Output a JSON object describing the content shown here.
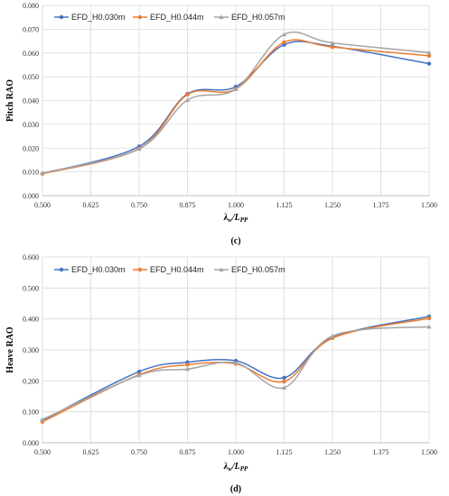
{
  "chart_data": [
    {
      "type": "line",
      "caption": "(c)",
      "ylabel": "Pitch RAO",
      "xlabel_main": "λ",
      "xlabel_sub1": "w",
      "xlabel_mid": "/L",
      "xlabel_sub2": "PP",
      "x": [
        0.5,
        0.75,
        0.875,
        1.0,
        1.125,
        1.25,
        1.5
      ],
      "xticks": [
        "0.500",
        "0.625",
        "0.750",
        "0.875",
        "1.000",
        "1.125",
        "1.250",
        "1.375",
        "1.500"
      ],
      "yticks": [
        "0.000",
        "0.010",
        "0.020",
        "0.030",
        "0.040",
        "0.050",
        "0.060",
        "0.070",
        "0.080"
      ],
      "xlim": [
        0.5,
        1.5
      ],
      "ylim": [
        0,
        0.08
      ],
      "series": [
        {
          "name": "EFD_H0.030m",
          "color": "#4472C4",
          "marker": "circle",
          "values": [
            0.0093,
            0.0207,
            0.0428,
            0.0458,
            0.0635,
            0.0628,
            0.0555
          ]
        },
        {
          "name": "EFD_H0.044m",
          "color": "#ED7D31",
          "marker": "circle",
          "values": [
            0.0092,
            0.0198,
            0.0425,
            0.0448,
            0.0645,
            0.0625,
            0.0588
          ]
        },
        {
          "name": "EFD_H0.057m",
          "color": "#A5A5A5",
          "marker": "triangle",
          "values": [
            0.0095,
            0.0197,
            0.0402,
            0.0448,
            0.0678,
            0.0642,
            0.0602
          ]
        }
      ]
    },
    {
      "type": "line",
      "caption": "(d)",
      "ylabel": "Heave RAO",
      "xlabel_main": "λ",
      "xlabel_sub1": "w",
      "xlabel_mid": "/L",
      "xlabel_sub2": "PP",
      "x": [
        0.5,
        0.75,
        0.875,
        1.0,
        1.125,
        1.25,
        1.5
      ],
      "xticks": [
        "0.500",
        "0.625",
        "0.750",
        "0.875",
        "1.000",
        "1.125",
        "1.250",
        "1.375",
        "1.500"
      ],
      "yticks": [
        "0.000",
        "0.100",
        "0.200",
        "0.300",
        "0.400",
        "0.500",
        "0.600"
      ],
      "xlim": [
        0.5,
        1.5
      ],
      "ylim": [
        0,
        0.6
      ],
      "series": [
        {
          "name": "EFD_H0.030m",
          "color": "#4472C4",
          "marker": "circle",
          "values": [
            0.072,
            0.23,
            0.26,
            0.265,
            0.21,
            0.34,
            0.408
          ]
        },
        {
          "name": "EFD_H0.044m",
          "color": "#ED7D31",
          "marker": "circle",
          "values": [
            0.068,
            0.22,
            0.252,
            0.255,
            0.198,
            0.338,
            0.402
          ]
        },
        {
          "name": "EFD_H0.057m",
          "color": "#A5A5A5",
          "marker": "triangle",
          "values": [
            0.075,
            0.218,
            0.238,
            0.258,
            0.178,
            0.345,
            0.375
          ]
        }
      ]
    }
  ]
}
